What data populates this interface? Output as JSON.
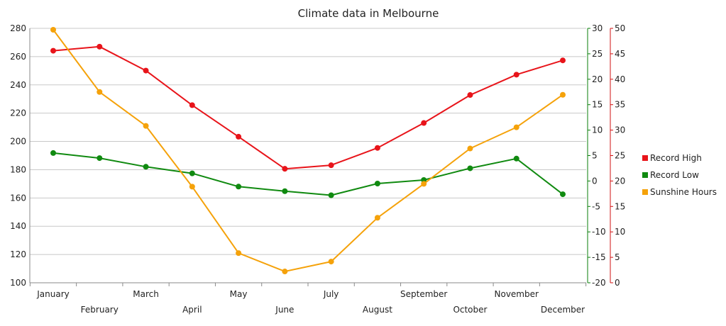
{
  "chart_data": {
    "type": "line",
    "title": "Climate data in Melbourne",
    "categories": [
      "January",
      "February",
      "March",
      "April",
      "May",
      "June",
      "July",
      "August",
      "September",
      "October",
      "November",
      "December"
    ],
    "axes": {
      "left": {
        "min": 100,
        "max": 280,
        "step": 20,
        "ticks": [
          "100",
          "120",
          "140",
          "160",
          "180",
          "200",
          "220",
          "240",
          "260",
          "280"
        ],
        "color": "#888888"
      },
      "right_green": {
        "min": -20,
        "max": 30,
        "step": 5,
        "ticks": [
          "-20",
          "-15",
          "-10",
          "-5",
          "0",
          "5",
          "10",
          "15",
          "20",
          "25",
          "30"
        ],
        "color": "#0a7d0a"
      },
      "right_red": {
        "min": 0,
        "max": 50,
        "step": 5,
        "ticks": [
          "0",
          "5",
          "10",
          "15",
          "20",
          "25",
          "30",
          "35",
          "40",
          "45",
          "50"
        ],
        "color": "#d01010"
      }
    },
    "series": [
      {
        "name": "Record High",
        "axis": "right_red",
        "color": "#e8141a",
        "values": [
          45.6,
          46.4,
          41.7,
          34.9,
          28.7,
          22.4,
          23.1,
          26.5,
          31.4,
          36.9,
          40.9,
          43.7
        ]
      },
      {
        "name": "Record Low",
        "axis": "right_green",
        "color": "#108a10",
        "values": [
          5.5,
          4.5,
          2.8,
          1.5,
          -1.1,
          -2.0,
          -2.8,
          -0.5,
          0.2,
          2.5,
          4.4,
          -2.6
        ]
      },
      {
        "name": "Sunshine Hours",
        "axis": "left",
        "color": "#f5a20a",
        "values": [
          279,
          235,
          211,
          168,
          121,
          108,
          115,
          146,
          170,
          195,
          210,
          233
        ]
      }
    ],
    "grid": true,
    "legend_position": "right"
  }
}
